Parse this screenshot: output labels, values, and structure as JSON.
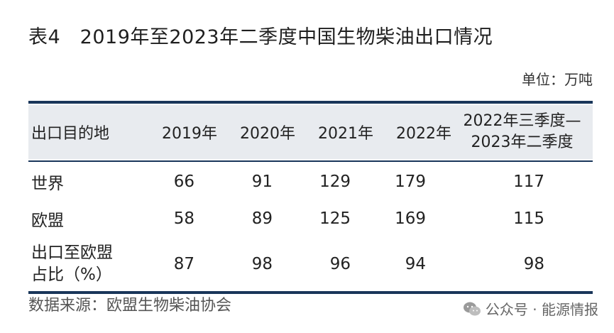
{
  "title": "表4　2019年至2023年二季度中国生物柴油出口情况",
  "unit": "单位：万吨",
  "table": {
    "headers": [
      "出口目的地",
      "2019年",
      "2020年",
      "2021年",
      "2022年",
      "2022年三季度—",
      "2023年二季度"
    ],
    "rows": [
      {
        "label": "世界",
        "values": [
          "66",
          "91",
          "129",
          "179",
          "117"
        ]
      },
      {
        "label": "欧盟",
        "values": [
          "58",
          "89",
          "125",
          "169",
          "115"
        ]
      },
      {
        "label_line1": "出口至欧盟",
        "label_line2": "占比（%）",
        "values": [
          "87",
          "98",
          "96",
          "94",
          "98"
        ]
      }
    ]
  },
  "source": "数据来源：欧盟生物柴油协会",
  "watermark": "公众号 · 能源情报",
  "colors": {
    "rule": "#19365a",
    "header_bg": "#e8ebef"
  }
}
